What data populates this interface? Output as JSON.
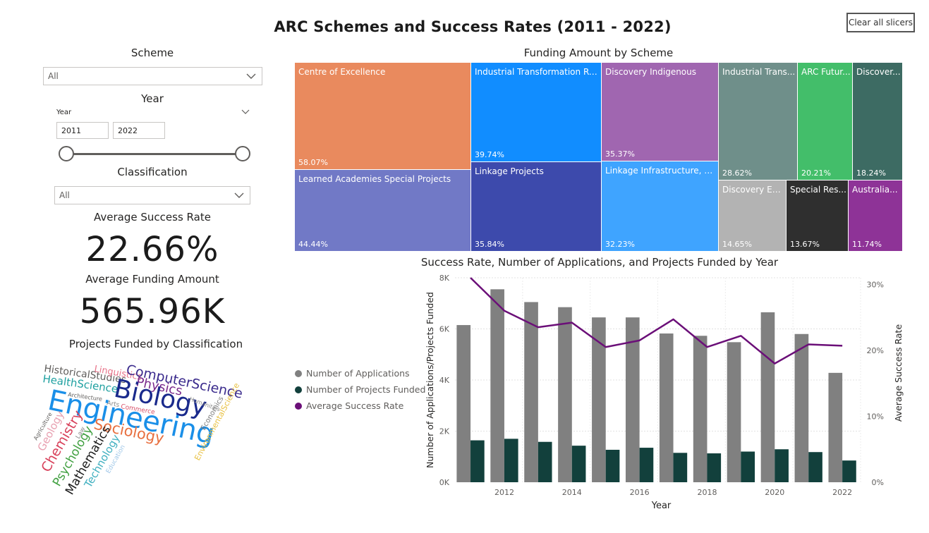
{
  "title": "ARC Schemes and Success Rates  (2011 - 2022)",
  "clear_button": "Clear all slicers",
  "slicers": {
    "scheme": {
      "title": "Scheme",
      "value": "All"
    },
    "year": {
      "title": "Year",
      "sub_label": "Year",
      "start": "2011",
      "end": "2022"
    },
    "classification": {
      "title": "Classification",
      "value": "All"
    }
  },
  "kpis": {
    "success_rate": {
      "label": "Average Success Rate",
      "value": "22.66%"
    },
    "funding": {
      "label": "Average Funding Amount",
      "value": "565.96K"
    }
  },
  "wordcloud": {
    "title": "Projects Funded by Classification",
    "words": [
      {
        "text": "HistoricalStudies",
        "color": "#605e5c"
      },
      {
        "text": "Linguistics",
        "color": "#e8748a"
      },
      {
        "text": "ComputerScience",
        "color": "#3a2a8c"
      },
      {
        "text": "HealthScience",
        "color": "#1fa0a0"
      },
      {
        "text": "Physics",
        "color": "#7a2a8c"
      },
      {
        "text": "Architecture",
        "color": "#605e5c"
      },
      {
        "text": "Biology",
        "color": "#1a2a8c"
      },
      {
        "text": "Humanities",
        "color": "#8a8a8a"
      },
      {
        "text": "Arts",
        "color": "#8a8a8a"
      },
      {
        "text": "Commerce",
        "color": "#d8526a"
      },
      {
        "text": "Engineering",
        "color": "#1a8fe8"
      },
      {
        "text": "EnvironmentalScience",
        "color": "#e8c040"
      },
      {
        "text": "Economics",
        "color": "#7a7a7a"
      },
      {
        "text": "Agriculture",
        "color": "#605e5c"
      },
      {
        "text": "Geology",
        "color": "#e8a0b0"
      },
      {
        "text": "Sociology",
        "color": "#e87040"
      },
      {
        "text": "Law",
        "color": "#8a8a8a"
      },
      {
        "text": "Chemistry",
        "color": "#d8405a"
      },
      {
        "text": "Psychology",
        "color": "#40a040"
      },
      {
        "text": "Mathematics",
        "color": "#1b1b1b"
      },
      {
        "text": "Technology",
        "color": "#40b0c0"
      },
      {
        "text": "Education",
        "color": "#a0c8e8"
      }
    ]
  },
  "treemap": {
    "title": "Funding Amount by Scheme",
    "tiles": [
      {
        "label": "Centre of Excellence",
        "pct": "58.07%",
        "color": "#e98a5e"
      },
      {
        "label": "Learned Academies Special Projects",
        "pct": "44.44%",
        "color": "#7179c6"
      },
      {
        "label": "Industrial Transformation Re...",
        "pct": "39.74%",
        "color": "#118dff"
      },
      {
        "label": "Linkage Projects",
        "pct": "35.84%",
        "color": "#3d4aac"
      },
      {
        "label": "Discovery Indigenous",
        "pct": "35.37%",
        "color": "#a066b0"
      },
      {
        "label": "Linkage Infrastructure, E...",
        "pct": "32.23%",
        "color": "#3fa4ff"
      },
      {
        "label": "Industrial Trans...",
        "pct": "28.62%",
        "color": "#6f8f8a"
      },
      {
        "label": "ARC Futur...",
        "pct": "20.21%",
        "color": "#43be6a"
      },
      {
        "label": "Discover...",
        "pct": "18.24%",
        "color": "#3d6b63"
      },
      {
        "label": "Discovery Ea...",
        "pct": "14.65%",
        "color": "#b3b3b3"
      },
      {
        "label": "Special Res...",
        "pct": "13.67%",
        "color": "#2f2f2f"
      },
      {
        "label": "Australia...",
        "pct": "11.74%",
        "color": "#8e3397"
      }
    ]
  },
  "combo": {
    "title": "Success Rate, Number of Applications, and Projects Funded by Year",
    "legend": [
      {
        "label": "Number of Applications",
        "color": "#808080"
      },
      {
        "label": "Number of Projects Funded",
        "color": "#12403c"
      },
      {
        "label": "Average Success Rate",
        "color": "#6b0f78"
      }
    ]
  },
  "chart_data": {
    "type": "bar",
    "title": "Success Rate, Number of Applications, and Projects Funded by Year",
    "xlabel": "Year",
    "ylabel": "Number of Applications/Projects Funded",
    "y2label": "Average Success Rate",
    "categories": [
      "2011",
      "2012",
      "2013",
      "2014",
      "2015",
      "2016",
      "2017",
      "2018",
      "2019",
      "2020",
      "2021",
      "2022"
    ],
    "x_tick_labels": [
      "2012",
      "2014",
      "2016",
      "2018",
      "2020",
      "2022"
    ],
    "ylim": [
      0,
      8000
    ],
    "y_ticks": [
      "0K",
      "2K",
      "4K",
      "6K",
      "8K"
    ],
    "y2lim": [
      0,
      31
    ],
    "y2_ticks": [
      "0%",
      "10%",
      "20%",
      "30%"
    ],
    "series": [
      {
        "name": "Number of Applications",
        "type": "bar",
        "color": "#808080",
        "values": [
          6150,
          7550,
          7050,
          6850,
          6450,
          6450,
          5820,
          5730,
          5480,
          6650,
          5800,
          4280
        ]
      },
      {
        "name": "Number of Projects Funded",
        "type": "bar",
        "color": "#12403c",
        "values": [
          1640,
          1700,
          1580,
          1430,
          1270,
          1350,
          1150,
          1130,
          1200,
          1290,
          1180,
          850
        ]
      },
      {
        "name": "Average Success Rate",
        "type": "line",
        "axis": "y2",
        "color": "#6b0f78",
        "values": [
          31.0,
          26.0,
          23.5,
          24.2,
          20.5,
          21.5,
          24.7,
          20.5,
          22.2,
          18.0,
          20.9,
          20.7
        ]
      }
    ],
    "grid": true,
    "legend": "left"
  }
}
